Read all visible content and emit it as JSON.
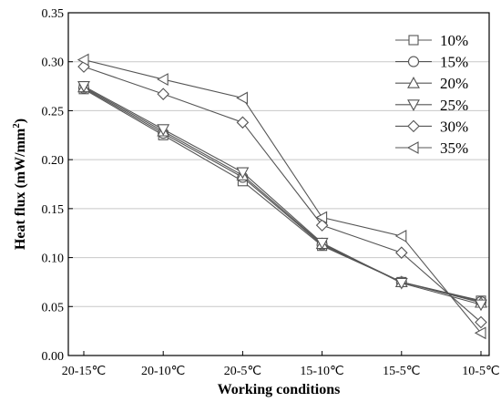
{
  "chart_data": {
    "type": "line",
    "title": "",
    "xlabel": "Working conditions",
    "ylabel_main": "Heat flux (mW/mm",
    "ylabel_sup": "2",
    "ylabel_close": ")",
    "categories": [
      "20-15℃",
      "20-10℃",
      "20-5℃",
      "15-10℃",
      "15-5℃",
      "10-5℃"
    ],
    "ylim": [
      0.0,
      0.35
    ],
    "yticks": [
      "0.00",
      "0.05",
      "0.10",
      "0.15",
      "0.20",
      "0.25",
      "0.30",
      "0.35"
    ],
    "grid": "horizontal",
    "legend_position": "top-right",
    "line_color": "#555555",
    "series": [
      {
        "name": "10%",
        "marker": "square",
        "values": [
          0.272,
          0.225,
          0.178,
          0.112,
          0.075,
          0.056
        ]
      },
      {
        "name": "15%",
        "marker": "circle",
        "values": [
          0.273,
          0.227,
          0.182,
          0.113,
          0.075,
          0.055
        ]
      },
      {
        "name": "20%",
        "marker": "triangle-up",
        "values": [
          0.274,
          0.229,
          0.184,
          0.114,
          0.075,
          0.054
        ]
      },
      {
        "name": "25%",
        "marker": "triangle-down",
        "values": [
          0.275,
          0.231,
          0.187,
          0.115,
          0.074,
          0.052
        ]
      },
      {
        "name": "30%",
        "marker": "diamond",
        "values": [
          0.295,
          0.267,
          0.238,
          0.133,
          0.105,
          0.034
        ]
      },
      {
        "name": "35%",
        "marker": "triangle-left",
        "values": [
          0.302,
          0.282,
          0.263,
          0.141,
          0.122,
          0.023
        ]
      }
    ]
  }
}
